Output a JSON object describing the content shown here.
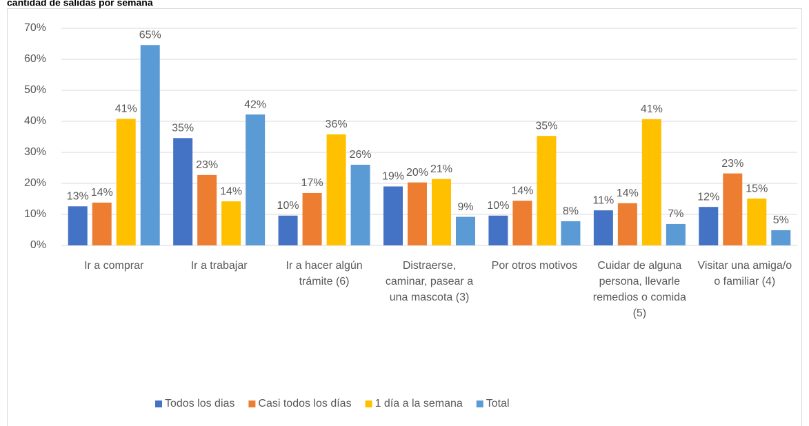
{
  "chart_data": {
    "type": "bar",
    "title": "cantidad de salidas por semana",
    "categories": [
      "Ir a comprar",
      "Ir a trabajar",
      "Ir a hacer algún trámite (6)",
      "Distraerse, caminar, pasear a una mascota (3)",
      "Por otros motivos",
      "Cuidar de alguna persona, llevarle remedios o comida (5)",
      "Visitar una amiga/o o familiar (4)"
    ],
    "series": [
      {
        "name": "Todos los dias",
        "color": "#4472c4",
        "values": [
          12.6,
          34.6,
          9.6,
          19,
          9.6,
          11.3,
          12.4
        ],
        "value_labels": [
          "13%",
          "35%",
          "10%",
          "19%",
          "10%",
          "11%",
          "12%"
        ]
      },
      {
        "name": "Casi todos los días",
        "color": "#ed7d31",
        "values": [
          13.8,
          22.7,
          16.9,
          20.3,
          14.4,
          13.6,
          23.2
        ],
        "value_labels": [
          "14%",
          "23%",
          "17%",
          "20%",
          "14%",
          "14%",
          "23%"
        ]
      },
      {
        "name": "1 día a la semana",
        "color": "#ffc000",
        "values": [
          40.8,
          14.2,
          35.8,
          21.4,
          35.3,
          40.7,
          15.1
        ],
        "value_labels": [
          "41%",
          "14%",
          "36%",
          "21%",
          "35%",
          "41%",
          "15%"
        ]
      },
      {
        "name": "Total",
        "color": "#5b9bd5",
        "values": [
          64.6,
          42.2,
          26,
          9.2,
          7.8,
          6.9,
          4.9
        ],
        "value_labels": [
          "65%",
          "42%",
          "26%",
          "9%",
          "8%",
          "7%",
          "5%"
        ]
      }
    ],
    "ylim": [
      0,
      70
    ],
    "yticks": [
      {
        "value": 0,
        "label": "0%"
      },
      {
        "value": 10,
        "label": "10%"
      },
      {
        "value": 20,
        "label": "20%"
      },
      {
        "value": 30,
        "label": "30%"
      },
      {
        "value": 40,
        "label": "40%"
      },
      {
        "value": 50,
        "label": "50%"
      },
      {
        "value": 60,
        "label": "60%"
      },
      {
        "value": 70,
        "label": "70%"
      }
    ],
    "grid": true,
    "legend": "bottom"
  }
}
